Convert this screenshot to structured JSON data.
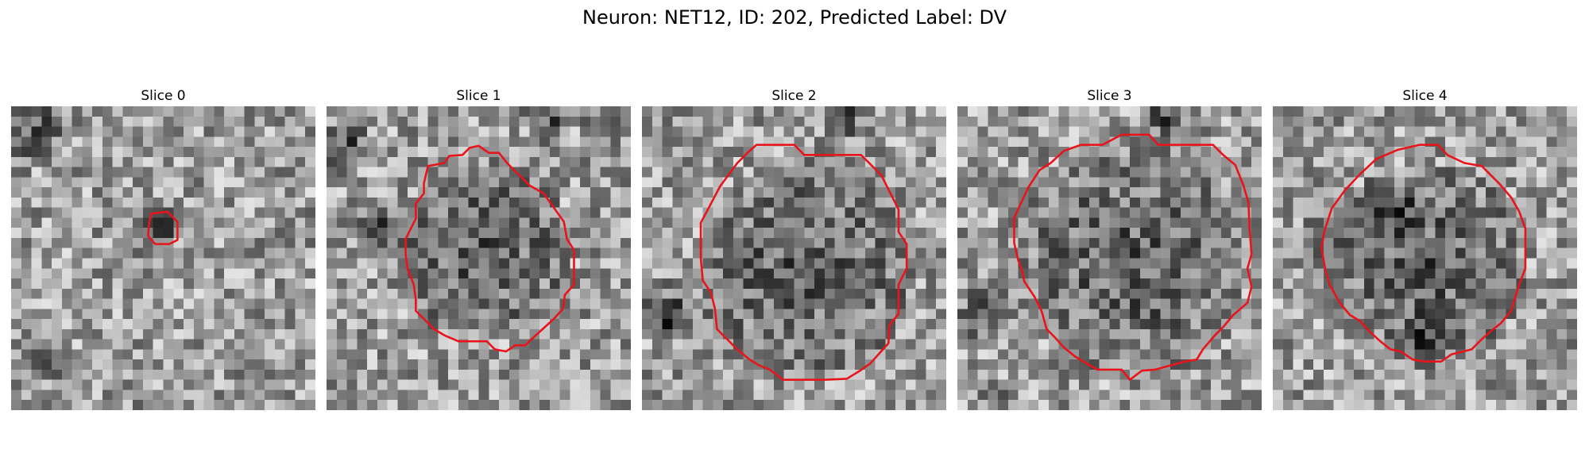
{
  "figure": {
    "title": "Neuron: NET12, ID: 202, Predicted Label: DV"
  },
  "image_grid_size": 30,
  "contour_color": "#e8141c",
  "slices": [
    {
      "title": "Slice 0",
      "seed": 11,
      "dark_spots": [
        [
          2,
          2,
          4
        ],
        [
          14,
          12,
          3
        ],
        [
          3,
          25,
          3
        ]
      ],
      "contour": [
        [
          13.8,
          10.6
        ],
        [
          15.4,
          10.4
        ],
        [
          16.4,
          11.4
        ],
        [
          16.4,
          13.2
        ],
        [
          15.6,
          13.6
        ],
        [
          14.2,
          13.6
        ],
        [
          13.5,
          12.8
        ],
        [
          13.6,
          11.6
        ]
      ]
    },
    {
      "title": "Slice 1",
      "seed": 23,
      "dark_spots": [
        [
          22,
          1,
          3
        ],
        [
          2,
          4,
          3
        ],
        [
          5,
          12,
          3
        ],
        [
          27,
          2,
          2
        ]
      ],
      "contour": [
        [
          15,
          3.9
        ],
        [
          16,
          4.6
        ],
        [
          17,
          4.6
        ],
        [
          17.8,
          5.6
        ],
        [
          18.8,
          6.6
        ],
        [
          20,
          7.8
        ],
        [
          21.4,
          8.6
        ],
        [
          22.4,
          10
        ],
        [
          23.4,
          11.4
        ],
        [
          23.7,
          13.1
        ],
        [
          24.4,
          14.2
        ],
        [
          24.4,
          16
        ],
        [
          24.4,
          17.6
        ],
        [
          23.5,
          18.6
        ],
        [
          23.3,
          20
        ],
        [
          22.4,
          21
        ],
        [
          21.3,
          22
        ],
        [
          20.2,
          23
        ],
        [
          19.6,
          23.6
        ],
        [
          18.6,
          23.6
        ],
        [
          17.7,
          24.2
        ],
        [
          16.6,
          24
        ],
        [
          15.8,
          23.2
        ],
        [
          14.5,
          23.2
        ],
        [
          13,
          23.2
        ],
        [
          11.6,
          22.6
        ],
        [
          10.6,
          22
        ],
        [
          9.6,
          21
        ],
        [
          8.8,
          20.2
        ],
        [
          8.8,
          19.1
        ],
        [
          8.6,
          17.6
        ],
        [
          8,
          16.1
        ],
        [
          7.8,
          14.6
        ],
        [
          7.8,
          13.1
        ],
        [
          8.3,
          12.1
        ],
        [
          8.8,
          11.1
        ],
        [
          8.8,
          9.6
        ],
        [
          9.6,
          8.6
        ],
        [
          9.6,
          7.6
        ],
        [
          10,
          5.9
        ],
        [
          11.6,
          5.6
        ],
        [
          12.1,
          4.9
        ],
        [
          13.4,
          4.8
        ],
        [
          14.1,
          4.1
        ]
      ]
    },
    {
      "title": "Slice 2",
      "seed": 37,
      "dark_spots": [
        [
          20,
          1,
          3
        ],
        [
          2,
          20,
          3
        ],
        [
          3,
          21,
          2
        ]
      ],
      "contour": [
        [
          10.5,
          4.5
        ],
        [
          11.3,
          3.8
        ],
        [
          15,
          3.8
        ],
        [
          16,
          4.8
        ],
        [
          21.6,
          4.8
        ],
        [
          22.6,
          5.8
        ],
        [
          23.6,
          6.8
        ],
        [
          24.6,
          8.8
        ],
        [
          25.3,
          10.2
        ],
        [
          25.3,
          12.4
        ],
        [
          26.1,
          13.6
        ],
        [
          26.1,
          16
        ],
        [
          25.3,
          17.6
        ],
        [
          25.3,
          20.5
        ],
        [
          24.4,
          21.6
        ],
        [
          24.3,
          23.4
        ],
        [
          22.5,
          25.4
        ],
        [
          21.5,
          26.1
        ],
        [
          20.2,
          26.9
        ],
        [
          18.1,
          27
        ],
        [
          13.9,
          27
        ],
        [
          12.6,
          26
        ],
        [
          11.6,
          25.6
        ],
        [
          10.6,
          25
        ],
        [
          9.4,
          24
        ],
        [
          8.4,
          23
        ],
        [
          7.4,
          22
        ],
        [
          7.2,
          20
        ],
        [
          6.8,
          18.4
        ],
        [
          6,
          17.2
        ],
        [
          5.8,
          15
        ],
        [
          5.8,
          11.5
        ],
        [
          6.6,
          10
        ],
        [
          7.7,
          7.9
        ],
        [
          9.4,
          5.6
        ]
      ]
    },
    {
      "title": "Slice 3",
      "seed": 41,
      "dark_spots": [
        [
          21,
          1,
          3
        ],
        [
          3,
          20,
          3
        ],
        [
          4,
          29,
          2
        ],
        [
          1,
          22,
          2
        ]
      ],
      "contour": [
        [
          16.2,
          2.8
        ],
        [
          18.9,
          2.8
        ],
        [
          19.8,
          3.8
        ],
        [
          25.2,
          3.8
        ],
        [
          26.2,
          4.8
        ],
        [
          27.4,
          5.8
        ],
        [
          28.2,
          7.8
        ],
        [
          28.7,
          9.5
        ],
        [
          28.8,
          12
        ],
        [
          29,
          14.6
        ],
        [
          28.6,
          16
        ],
        [
          29,
          17.8
        ],
        [
          28.6,
          19.4
        ],
        [
          27.2,
          20.6
        ],
        [
          26.2,
          21.8
        ],
        [
          25.4,
          22.6
        ],
        [
          24.2,
          24
        ],
        [
          23.6,
          25
        ],
        [
          22.4,
          25.2
        ],
        [
          19.5,
          26
        ],
        [
          18.2,
          26.1
        ],
        [
          17,
          27
        ],
        [
          16.2,
          26
        ],
        [
          13.8,
          26
        ],
        [
          12.6,
          25.3
        ],
        [
          11.6,
          24.7
        ],
        [
          10.5,
          23.8
        ],
        [
          9.6,
          22.8
        ],
        [
          8.8,
          22
        ],
        [
          8.3,
          20.2
        ],
        [
          7.6,
          18.8
        ],
        [
          6.6,
          17.3
        ],
        [
          6.4,
          16.3
        ],
        [
          6,
          15.2
        ],
        [
          5.6,
          13.5
        ],
        [
          5.6,
          11
        ],
        [
          6.3,
          9.5
        ],
        [
          7,
          8
        ],
        [
          8.1,
          6.3
        ],
        [
          9.2,
          5.6
        ],
        [
          10.5,
          4.4
        ],
        [
          12.2,
          3.8
        ],
        [
          14.3,
          3.8
        ]
      ]
    },
    {
      "title": "Slice 4",
      "seed": 53,
      "dark_spots": [
        [
          5,
          13,
          3
        ],
        [
          12,
          10,
          3
        ],
        [
          15,
          23,
          3
        ]
      ],
      "contour": [
        [
          14.5,
          3.8
        ],
        [
          16.3,
          3.8
        ],
        [
          17.2,
          4.8
        ],
        [
          18.9,
          5.6
        ],
        [
          20.6,
          5.9
        ],
        [
          22.3,
          7.6
        ],
        [
          23.5,
          9
        ],
        [
          24.3,
          10.4
        ],
        [
          24.9,
          12.1
        ],
        [
          24.9,
          14
        ],
        [
          24.9,
          16
        ],
        [
          24.3,
          17.6
        ],
        [
          23.8,
          19.2
        ],
        [
          23.5,
          20.2
        ],
        [
          22.5,
          21.4
        ],
        [
          21.5,
          22.2
        ],
        [
          20.6,
          23
        ],
        [
          19.6,
          24
        ],
        [
          17.6,
          24.5
        ],
        [
          16.6,
          25.2
        ],
        [
          14.9,
          25.2
        ],
        [
          13.8,
          25
        ],
        [
          12.6,
          24.2
        ],
        [
          11.6,
          24
        ],
        [
          10.6,
          23.2
        ],
        [
          9.5,
          22.2
        ],
        [
          8.6,
          21.2
        ],
        [
          7.6,
          20.6
        ],
        [
          6.6,
          19.4
        ],
        [
          5.6,
          17.6
        ],
        [
          5.2,
          16.2
        ],
        [
          4.8,
          14
        ],
        [
          5.1,
          12.3
        ],
        [
          5.8,
          10.1
        ],
        [
          7.1,
          8.3
        ],
        [
          8.6,
          6.7
        ],
        [
          10.2,
          5.2
        ],
        [
          12.3,
          4.3
        ]
      ]
    }
  ]
}
